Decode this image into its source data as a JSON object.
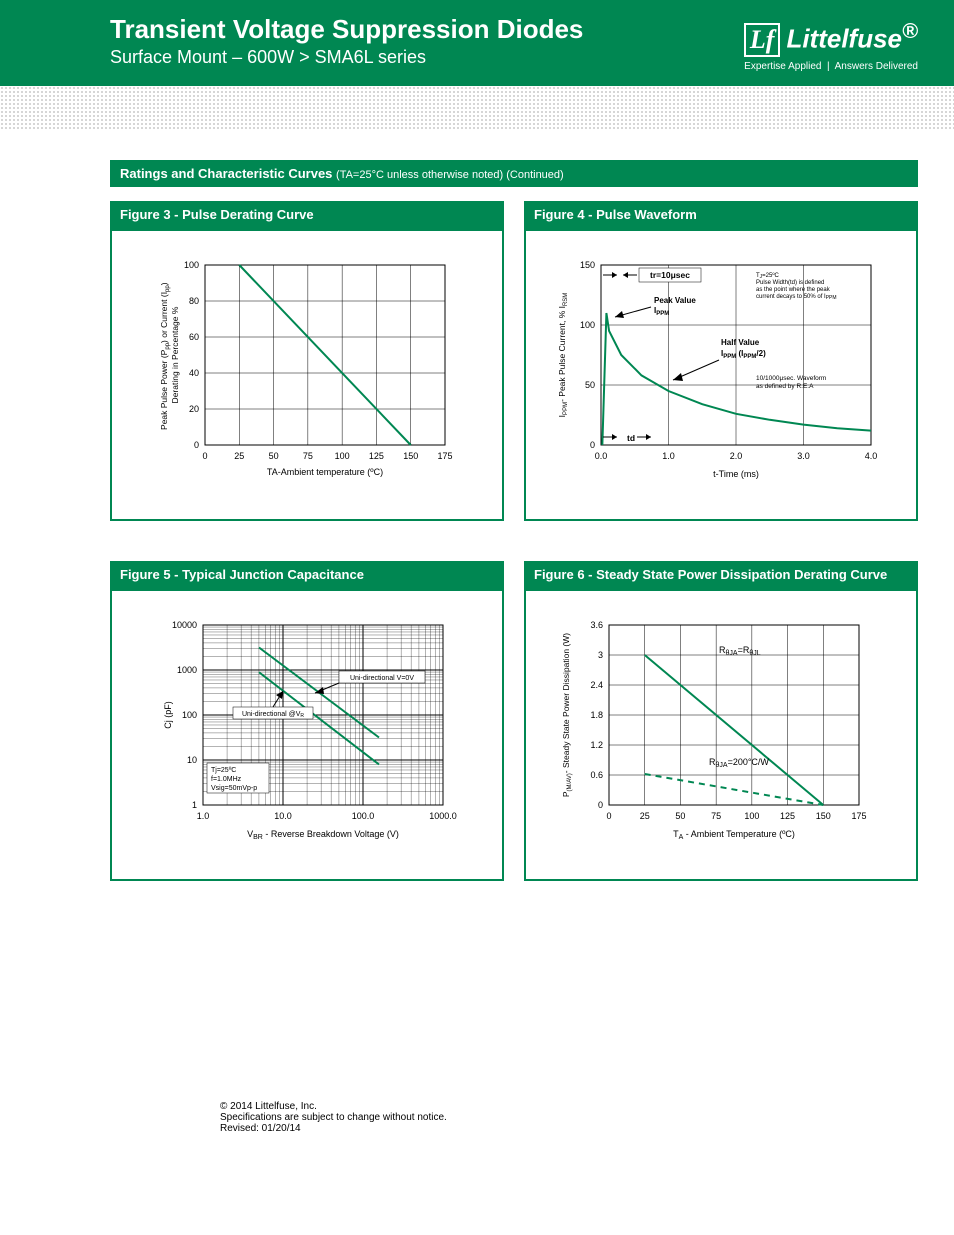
{
  "header": {
    "title": "Transient Voltage Suppression Diodes",
    "subtitle": "Surface Mount – 600W  >  SMA6L series",
    "brand": "Littelfuse",
    "brand_reg": "®",
    "tagline_left": "Expertise Applied",
    "tagline_right": "Answers Delivered"
  },
  "section": {
    "title": "Ratings and Characteristic Curves ",
    "note": "(TA=25°C unless otherwise noted) (Continued)"
  },
  "fig3": {
    "title": "Figure 3 - Pulse Derating Curve",
    "type": "line",
    "xlabel": "TA-Ambient temperature (ºC)",
    "ylabel": "Peak Pulse Power (PPP) or Current (IPP)\nDerating in Percentage %",
    "xticks": [
      0,
      25,
      50,
      75,
      100,
      125,
      150,
      175
    ],
    "yticks": [
      0,
      20,
      40,
      60,
      80,
      100
    ],
    "xlim": [
      0,
      175
    ],
    "ylim": [
      0,
      100
    ],
    "line": [
      [
        25,
        100
      ],
      [
        150,
        0
      ]
    ],
    "line_color": "#008752",
    "grid_color": "#000000",
    "font_size_axis": 9
  },
  "fig4": {
    "title": "Figure 4 - Pulse Waveform",
    "type": "line",
    "xlabel": "t-Time (ms)",
    "ylabel": "IPPM- Peak Pulse Current, % IRSM",
    "xticks": [
      0,
      1.0,
      2.0,
      3.0,
      4.0
    ],
    "yticks": [
      0,
      50,
      100,
      150
    ],
    "xlim": [
      0,
      4.0
    ],
    "ylim": [
      0,
      150
    ],
    "curve": [
      [
        0.02,
        0
      ],
      [
        0.08,
        110
      ],
      [
        0.12,
        95
      ],
      [
        0.3,
        75
      ],
      [
        0.6,
        58
      ],
      [
        1.0,
        45
      ],
      [
        1.5,
        34
      ],
      [
        2.0,
        26
      ],
      [
        2.5,
        21
      ],
      [
        3.0,
        17
      ],
      [
        3.5,
        14
      ],
      [
        4.0,
        12
      ]
    ],
    "line_color": "#008752",
    "annotations": {
      "tr": "tr=10μsec",
      "peak": "Peak Value\nIPPM",
      "half": "Half Value\nIPPM (IPPM/2)",
      "td": "td",
      "note1": "Tj=25ºC\nPulse Width(td) is defined\nas the point where the peak\ncurrent decays to 50% of IPPM",
      "note2": "10/1000μsec. Waveform\nas defined by R.E.A"
    },
    "grid_color": "#000000",
    "font_size_axis": 9
  },
  "fig5": {
    "title": "Figure 5 - Typical Junction Capacitance",
    "type": "line-loglog",
    "xlabel": "VBR - Reverse Breakdown Voltage (V)",
    "ylabel": "Cj (pF)",
    "xticks": [
      "1.0",
      "10.0",
      "100.0",
      "1000.0"
    ],
    "yticks": [
      "1",
      "10",
      "100",
      "1000",
      "10000"
    ],
    "xlim_log": [
      0,
      3
    ],
    "ylim_log": [
      0,
      4
    ],
    "curves": [
      {
        "label": "Uni-directional V=0V",
        "points": [
          [
            0.7,
            3.5
          ],
          [
            2.2,
            1.5
          ]
        ],
        "color": "#008752"
      },
      {
        "label": "Uni-directional @VR",
        "points": [
          [
            0.7,
            2.95
          ],
          [
            2.2,
            0.9
          ]
        ],
        "color": "#008752"
      }
    ],
    "conditions": "Tj=25ºC\nf=1.0MHz\nVsig=50mVp-p",
    "grid_color": "#000000",
    "font_size_axis": 9
  },
  "fig6": {
    "title": "Figure 6 - Steady State Power Dissipation Derating Curve",
    "type": "line",
    "xlabel": "TA - Ambient Temperature (ºC)",
    "ylabel": "P(M/AV)- Steady State Power Dissipation (W)",
    "xticks": [
      0,
      25,
      50,
      75,
      100,
      125,
      150,
      175
    ],
    "yticks": [
      0,
      0.6,
      1.2,
      1.8,
      2.4,
      3.0,
      3.6
    ],
    "xlim": [
      0,
      175
    ],
    "ylim": [
      0,
      3.6
    ],
    "curves": [
      {
        "label": "RθJA=RθJL",
        "points": [
          [
            25,
            3.0
          ],
          [
            150,
            0
          ]
        ],
        "color": "#008752",
        "dash": ""
      },
      {
        "label": "RθJA=200°C/W",
        "points": [
          [
            25,
            0.62
          ],
          [
            150,
            0
          ]
        ],
        "color": "#008752",
        "dash": "6,5"
      }
    ],
    "grid_color": "#000000",
    "font_size_axis": 9
  },
  "footer": {
    "copyright": "© 2014 Littelfuse, Inc.",
    "disclaimer": "Specifications are subject to change without notice.",
    "revised": "Revised: 01/20/14"
  }
}
